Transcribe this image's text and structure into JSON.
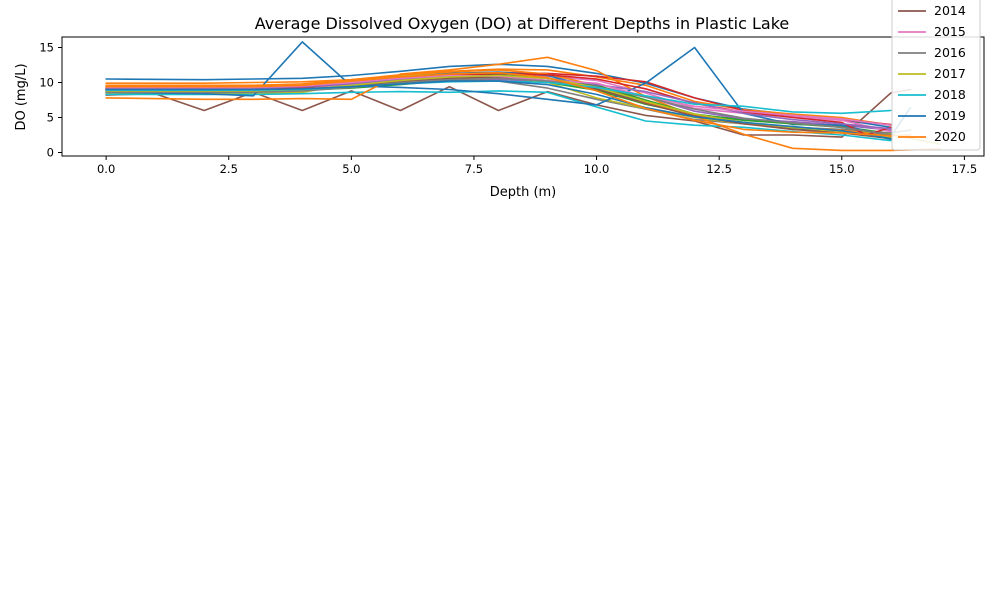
{
  "chart_data": {
    "type": "line",
    "title": "Average Dissolved Oxygen (DO) at Different Depths in Plastic Lake",
    "xlabel": "Depth (m)",
    "ylabel": "DO (mg/L)",
    "xlim": [
      -0.9,
      17.9
    ],
    "ylim": [
      -0.5,
      16.5
    ],
    "xticks": [
      0.0,
      2.5,
      5.0,
      7.5,
      10.0,
      12.5,
      15.0,
      17.5
    ],
    "xtick_labels": [
      "0.0",
      "2.5",
      "5.0",
      "7.5",
      "10.0",
      "12.5",
      "15.0",
      "17.5"
    ],
    "yticks": [
      0,
      5,
      10,
      15
    ],
    "ytick_labels": [
      "0",
      "5",
      "10",
      "15"
    ],
    "grid": false,
    "legend_position": "top-right",
    "legend": [
      {
        "label": "2014",
        "color": "#8c564b"
      },
      {
        "label": "2015",
        "color": "#e377c2"
      },
      {
        "label": "2016",
        "color": "#7f7f7f"
      },
      {
        "label": "2017",
        "color": "#bcbd22"
      },
      {
        "label": "2018",
        "color": "#17becf"
      },
      {
        "label": "2019",
        "color": "#1f77b4"
      },
      {
        "label": "2020",
        "color": "#ff7f0e"
      }
    ],
    "series": [
      {
        "color": "#1f77b4",
        "x": [
          0,
          2,
          3,
          4,
          5,
          6,
          7,
          8,
          9,
          10,
          11,
          12,
          13,
          14,
          15,
          16
        ],
        "y": [
          10.5,
          10.4,
          10.5,
          10.6,
          11.0,
          11.6,
          12.3,
          12.6,
          12.3,
          11.3,
          9.9,
          7.8,
          6.2,
          5.4,
          4.7,
          3.6
        ]
      },
      {
        "color": "#ff7f0e",
        "x": [
          0,
          2,
          3,
          4,
          5,
          6,
          7,
          8,
          9,
          10,
          11,
          12,
          13,
          14,
          15,
          16
        ],
        "y": [
          9.9,
          9.9,
          10.0,
          10.1,
          10.4,
          11.0,
          11.6,
          11.9,
          11.8,
          10.8,
          9.6,
          7.3,
          6.1,
          5.5,
          5.0,
          3.9
        ]
      },
      {
        "color": "#2ca02c",
        "x": [
          0,
          2,
          3,
          4,
          5,
          6,
          7,
          8,
          9,
          10,
          11,
          12,
          13,
          14,
          15,
          16
        ],
        "y": [
          8.8,
          8.8,
          8.8,
          8.9,
          9.2,
          9.7,
          10.3,
          10.5,
          10.0,
          8.9,
          6.9,
          5.4,
          4.7,
          4.2,
          3.7,
          2.7
        ]
      },
      {
        "color": "#d62728",
        "x": [
          0,
          2,
          3,
          4,
          5,
          6,
          7,
          8,
          9,
          10,
          11,
          12,
          13,
          14,
          15,
          16
        ],
        "y": [
          9.2,
          9.2,
          9.3,
          9.5,
          10.0,
          10.6,
          11.1,
          11.4,
          11.3,
          10.9,
          10.1,
          7.8,
          6.0,
          5.1,
          4.7,
          4.0
        ]
      },
      {
        "color": "#9467bd",
        "x": [
          0,
          2,
          3,
          4,
          5,
          6,
          7,
          8,
          9,
          10,
          11,
          12,
          13,
          14,
          15,
          16
        ],
        "y": [
          9.0,
          9.0,
          9.1,
          9.2,
          9.5,
          10.0,
          10.3,
          10.4,
          10.2,
          9.5,
          8.0,
          5.9,
          4.8,
          4.4,
          3.9,
          3.2
        ]
      },
      {
        "color": "#8c564b",
        "x": [
          0,
          1,
          2,
          3,
          4,
          5,
          6,
          7,
          8,
          9,
          10,
          11,
          12,
          13,
          14,
          15,
          16,
          16.4
        ],
        "y": [
          8.2,
          8.4,
          6.0,
          8.6,
          6.0,
          8.8,
          6.0,
          9.4,
          6.0,
          8.7,
          6.8,
          5.3,
          4.5,
          2.5,
          2.5,
          2.2,
          8.5,
          9.0
        ]
      },
      {
        "color": "#e377c2",
        "x": [
          0,
          2,
          3,
          4,
          5,
          6,
          7,
          8,
          9,
          10,
          11,
          12,
          13,
          14,
          15,
          16
        ],
        "y": [
          8.9,
          9.0,
          9.0,
          9.2,
          9.8,
          10.4,
          10.8,
          11.2,
          10.9,
          10.3,
          8.5,
          6.3,
          5.6,
          5.1,
          4.6,
          3.0
        ]
      },
      {
        "color": "#7f7f7f",
        "x": [
          0,
          2,
          3,
          4,
          5,
          6,
          7,
          8,
          9,
          10,
          11,
          12,
          13,
          14,
          15,
          16,
          16.4
        ],
        "y": [
          8.6,
          8.6,
          8.7,
          8.9,
          9.5,
          10.2,
          10.4,
          10.2,
          9.2,
          7.6,
          6.2,
          4.7,
          4.1,
          3.6,
          3.3,
          2.8,
          3.2
        ]
      },
      {
        "color": "#bcbd22",
        "x": [
          0,
          2,
          3,
          4,
          5,
          6,
          7,
          8,
          9,
          10,
          11,
          12,
          13,
          14,
          15,
          16,
          17
        ],
        "y": [
          8.5,
          8.4,
          8.4,
          8.6,
          9.8,
          10.9,
          11.3,
          10.9,
          10.0,
          7.8,
          6.3,
          5.0,
          4.1,
          3.4,
          3.1,
          2.6,
          1.2
        ]
      },
      {
        "color": "#17becf",
        "x": [
          0,
          2,
          3,
          4,
          5,
          6,
          7,
          8,
          9,
          10,
          11,
          12,
          13,
          14,
          15,
          16
        ],
        "y": [
          8.3,
          8.3,
          8.3,
          8.4,
          8.6,
          8.7,
          8.6,
          8.8,
          8.6,
          6.5,
          4.5,
          3.9,
          3.6,
          3.0,
          2.5,
          1.7
        ]
      },
      {
        "color": "#1f77b4",
        "x": [
          0,
          2,
          3,
          4,
          5,
          6,
          7,
          8,
          9,
          10,
          11,
          12,
          13,
          14,
          15,
          16,
          16.4
        ],
        "y": [
          8.6,
          8.4,
          8.1,
          15.8,
          9.5,
          9.3,
          9.0,
          8.4,
          7.6,
          6.8,
          9.9,
          15.0,
          5.6,
          4.0,
          3.9,
          2.3,
          6.4
        ]
      },
      {
        "color": "#ff7f0e",
        "x": [
          0,
          2,
          3,
          4,
          5,
          6,
          7,
          8,
          9,
          10,
          11,
          12,
          13,
          14,
          15,
          16,
          17
        ],
        "y": [
          7.8,
          7.6,
          7.6,
          7.7,
          7.6,
          11.2,
          11.8,
          12.6,
          13.6,
          11.7,
          8.0,
          5.2,
          2.6,
          0.6,
          0.3,
          0.3,
          0.5
        ]
      },
      {
        "color": "#1f77b4",
        "x": [
          0,
          2,
          3,
          4,
          5,
          6,
          7,
          8,
          9,
          10,
          11,
          12,
          13,
          14,
          15,
          16
        ],
        "y": [
          9.3,
          9.3,
          9.3,
          9.4,
          9.9,
          10.7,
          11.3,
          11.5,
          11.0,
          9.2,
          7.1,
          5.4,
          4.3,
          3.3,
          3.3,
          1.9
        ]
      },
      {
        "color": "#ff7f0e",
        "x": [
          0,
          2,
          3,
          4,
          5,
          6,
          7,
          8,
          9,
          10,
          11,
          12,
          13,
          14,
          15,
          16
        ],
        "y": [
          9.6,
          9.6,
          9.6,
          9.8,
          10.4,
          11.1,
          11.5,
          11.8,
          11.2,
          9.6,
          7.2,
          5.4,
          4.2,
          3.6,
          3.2,
          2.3
        ]
      },
      {
        "color": "#2ca02c",
        "x": [
          0,
          2,
          3,
          4,
          5,
          6,
          7,
          8,
          9,
          10,
          11,
          12,
          13,
          14,
          15,
          16
        ],
        "y": [
          9.1,
          9.1,
          9.1,
          9.3,
          9.9,
          10.6,
          11.0,
          11.1,
          10.6,
          9.6,
          7.5,
          5.5,
          4.6,
          4.1,
          3.6,
          2.5
        ]
      },
      {
        "color": "#d62728",
        "x": [
          0,
          2,
          3,
          4,
          5,
          6,
          7,
          8,
          9,
          10,
          11,
          12,
          13,
          14,
          15,
          15.5,
          16
        ],
        "y": [
          9.0,
          9.0,
          9.0,
          9.3,
          9.9,
          10.5,
          11.0,
          11.3,
          11.1,
          10.5,
          9.1,
          7.0,
          5.8,
          5.0,
          4.3,
          2.5,
          3.6
        ]
      },
      {
        "color": "#9467bd",
        "x": [
          0,
          2,
          3,
          4,
          5,
          6,
          7,
          8,
          9,
          10,
          11,
          12,
          13,
          14,
          15,
          16
        ],
        "y": [
          9.2,
          9.2,
          9.2,
          9.4,
          9.8,
          10.4,
          10.8,
          11.0,
          10.6,
          9.7,
          8.7,
          7.1,
          5.6,
          4.7,
          4.1,
          3.4
        ]
      },
      {
        "color": "#8c564b",
        "x": [
          0,
          2,
          3,
          4,
          5,
          6,
          7,
          8,
          9,
          10,
          11,
          12,
          13,
          14,
          15,
          16
        ],
        "y": [
          8.7,
          8.7,
          8.7,
          8.9,
          9.5,
          10.1,
          10.6,
          10.8,
          10.3,
          9.1,
          7.0,
          5.2,
          4.1,
          3.3,
          2.8,
          2.0
        ]
      },
      {
        "color": "#e377c2",
        "x": [
          0,
          2,
          3,
          4,
          5,
          6,
          7,
          8,
          9,
          10,
          11,
          12,
          13,
          14,
          15,
          16
        ],
        "y": [
          9.3,
          9.3,
          9.3,
          9.5,
          10.0,
          10.6,
          11.0,
          10.9,
          10.3,
          9.9,
          8.0,
          6.6,
          5.9,
          5.3,
          4.8,
          3.9
        ]
      },
      {
        "color": "#7f7f7f",
        "x": [
          0,
          2,
          3,
          4,
          5,
          6,
          7,
          8,
          9,
          10,
          11,
          12,
          13,
          14,
          15,
          16
        ],
        "y": [
          8.6,
          8.6,
          8.6,
          8.8,
          9.3,
          10.0,
          10.4,
          10.6,
          10.2,
          9.4,
          7.9,
          6.2,
          4.9,
          4.2,
          3.6,
          2.5
        ]
      },
      {
        "color": "#bcbd22",
        "x": [
          0,
          2,
          3,
          4,
          5,
          6,
          7,
          8,
          9,
          10,
          11,
          12,
          13,
          14,
          15,
          16
        ],
        "y": [
          8.8,
          8.8,
          8.8,
          9.0,
          9.6,
          10.3,
          10.8,
          11.0,
          10.6,
          9.3,
          7.3,
          5.5,
          4.3,
          3.6,
          3.0,
          2.1
        ]
      },
      {
        "color": "#17becf",
        "x": [
          0,
          2,
          3,
          4,
          5,
          6,
          7,
          8,
          9,
          10,
          11,
          12,
          13,
          14,
          15,
          16
        ],
        "y": [
          8.9,
          8.9,
          8.9,
          9.0,
          9.4,
          9.8,
          10.1,
          10.2,
          10.0,
          9.3,
          8.1,
          6.9,
          6.6,
          5.8,
          5.6,
          6.0
        ]
      },
      {
        "color": "#1f77b4",
        "x": [
          0,
          2,
          3,
          4,
          5,
          6,
          7,
          8,
          9,
          10,
          11,
          12,
          13,
          14,
          15,
          16
        ],
        "y": [
          9.0,
          9.0,
          9.0,
          9.1,
          9.4,
          9.8,
          10.2,
          10.2,
          9.7,
          8.3,
          6.4,
          5.1,
          4.3,
          3.7,
          3.1,
          2.0
        ]
      },
      {
        "color": "#ff7f0e",
        "x": [
          0,
          2,
          3,
          4,
          5,
          6,
          7,
          8,
          9,
          10,
          11,
          12,
          13,
          14,
          15,
          16,
          16.4
        ],
        "y": [
          9.4,
          9.4,
          9.4,
          9.6,
          10.2,
          10.8,
          11.2,
          11.4,
          10.7,
          8.8,
          6.3,
          4.6,
          3.3,
          2.9,
          2.8,
          2.4,
          2.5
        ]
      }
    ]
  }
}
